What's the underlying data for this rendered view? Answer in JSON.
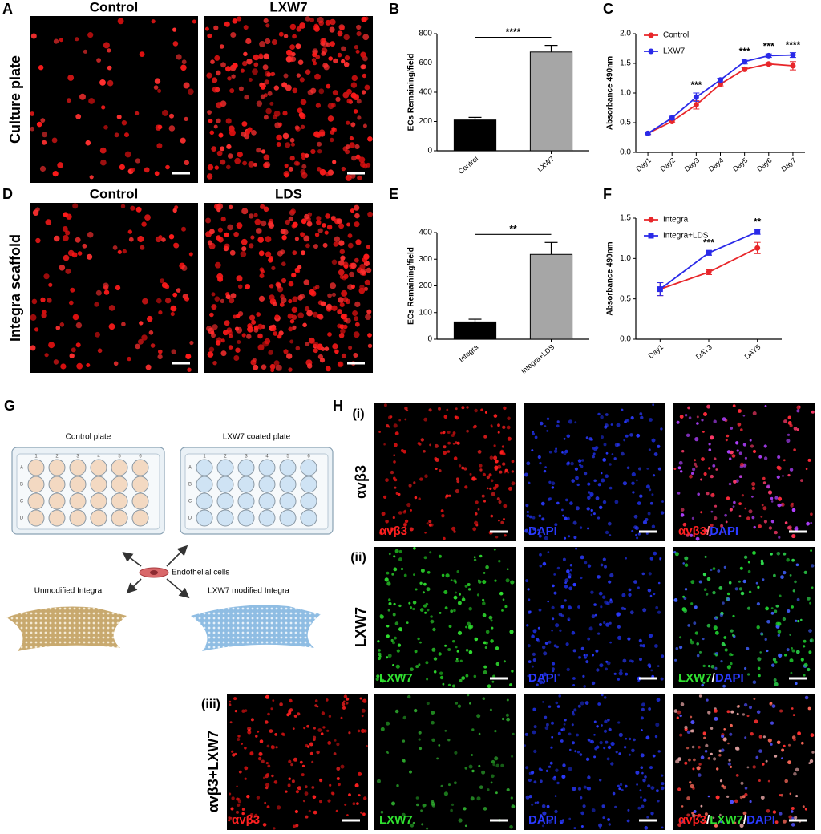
{
  "panels": {
    "labels": [
      "A",
      "B",
      "C",
      "D",
      "E",
      "F",
      "G",
      "H"
    ]
  },
  "micrographs": {
    "titles": [
      "Control",
      "LXW7",
      "Control",
      "LDS"
    ],
    "rows": [
      "Culture plate",
      "Integra scaffold"
    ]
  },
  "chart_data": [
    {
      "type": "bar",
      "ylabel": "ECs Remaining/field",
      "categories": [
        "Control",
        "LXW7"
      ],
      "values": [
        210,
        675
      ],
      "errors": [
        18,
        45
      ],
      "colors": [
        "#000000",
        "#a6a6a6"
      ],
      "ylim": [
        0,
        800
      ],
      "yticks": [
        0,
        200,
        400,
        600,
        800
      ],
      "significance": "****"
    },
    {
      "type": "line",
      "ylabel": "Absorbance 490nm",
      "categories": [
        "Day1",
        "Day2",
        "Day3",
        "Day4",
        "Day5",
        "Day6",
        "Day7"
      ],
      "series": [
        {
          "name": "Control",
          "color": "#e8262a",
          "marker": "circle",
          "values": [
            0.32,
            0.52,
            0.8,
            1.15,
            1.4,
            1.49,
            1.46
          ],
          "errors": [
            0.02,
            0.02,
            0.07,
            0.03,
            0.03,
            0.02,
            0.07
          ]
        },
        {
          "name": "LXW7",
          "color": "#2a2ae8",
          "marker": "circle",
          "values": [
            0.32,
            0.58,
            0.93,
            1.22,
            1.53,
            1.63,
            1.64
          ],
          "errors": [
            0.02,
            0.03,
            0.07,
            0.03,
            0.04,
            0.03,
            0.04
          ]
        }
      ],
      "ylim": [
        0,
        2
      ],
      "yticks": [
        {
          "value": 0,
          "label": "0.0"
        },
        0.5,
        {
          "value": 1,
          "label": "1.0"
        },
        1.5,
        {
          "value": 2,
          "label": "2.0"
        }
      ],
      "annotations": [
        null,
        null,
        "***",
        null,
        "***",
        "***",
        "****"
      ],
      "legend": "top-left"
    },
    {
      "type": "bar",
      "ylabel": "ECs Remaining/field",
      "categories": [
        "Integra",
        "Integra+LDS"
      ],
      "values": [
        65,
        318
      ],
      "errors": [
        10,
        45
      ],
      "colors": [
        "#000000",
        "#a6a6a6"
      ],
      "ylim": [
        0,
        400
      ],
      "yticks": [
        0,
        100,
        200,
        300,
        400
      ],
      "significance": "**"
    },
    {
      "type": "line",
      "ylabel": "Absorbance 490nm",
      "categories": [
        "Day1",
        "DAY3",
        "DAY5"
      ],
      "series": [
        {
          "name": "Integra",
          "color": "#e8262a",
          "marker": "circle",
          "values": [
            0.62,
            0.83,
            1.13
          ],
          "errors": [
            0.08,
            0.03,
            0.07
          ]
        },
        {
          "name": "Integra+LDS",
          "color": "#2a2ae8",
          "marker": "square",
          "values": [
            0.62,
            1.07,
            1.33
          ],
          "errors": [
            0.08,
            0.03,
            0.03
          ]
        }
      ],
      "ylim": [
        0,
        1.5
      ],
      "yticks": [
        {
          "value": 0,
          "label": "0.0"
        },
        0.5,
        {
          "value": 1,
          "label": "1.0"
        },
        1.5
      ],
      "annotations": [
        null,
        "***",
        "**"
      ],
      "legend": "top-left"
    }
  ],
  "diagram": {
    "plate_left": "Control plate",
    "plate_right": "LXW7 coated plate",
    "plate_rows": [
      "A",
      "B",
      "C",
      "D"
    ],
    "plate_cols": [
      "1",
      "2",
      "3",
      "4",
      "5",
      "6"
    ],
    "cells": "Endothelial cells",
    "scaffold_left": "Unmodified Integra",
    "scaffold_right": "LXW7 modified Integra"
  },
  "staining": {
    "rows": [
      {
        "number": "(i)",
        "label": "αvβ3",
        "captions": [
          [
            {
              "text": "αvβ3",
              "color": "#ff2020"
            }
          ],
          [
            {
              "text": "DAPI",
              "color": "#2a3aff"
            }
          ],
          [
            {
              "text": "αvβ3",
              "color": "#ff2020"
            },
            {
              "text": "/",
              "color": "#ff8080"
            },
            {
              "text": "DAPI",
              "color": "#2a3aff"
            }
          ]
        ]
      },
      {
        "number": "(ii)",
        "label": "LXW7",
        "captions": [
          [
            {
              "text": "LXW7",
              "color": "#30e030"
            }
          ],
          [
            {
              "text": "DAPI",
              "color": "#2a3aff"
            }
          ],
          [
            {
              "text": "LXW7",
              "color": "#30e030"
            },
            {
              "text": "/",
              "color": "#ffffff"
            },
            {
              "text": "DAPI",
              "color": "#2a3aff"
            }
          ]
        ]
      },
      {
        "number": "(iii)",
        "label": "αvβ3+LXW7",
        "captions": [
          [
            {
              "text": "αvβ3",
              "color": "#ff2020"
            }
          ],
          [
            {
              "text": "LXW7",
              "color": "#30e030"
            }
          ],
          [
            {
              "text": "DAPI",
              "color": "#2a3aff"
            }
          ],
          [
            {
              "text": "αvβ3",
              "color": "#ff2020"
            },
            {
              "text": "/",
              "color": "#ffffff"
            },
            {
              "text": "LXW7",
              "color": "#30e030"
            },
            {
              "text": "/",
              "color": "#ffffff"
            },
            {
              "text": "DAPI",
              "color": "#2a3aff"
            }
          ]
        ]
      }
    ]
  }
}
